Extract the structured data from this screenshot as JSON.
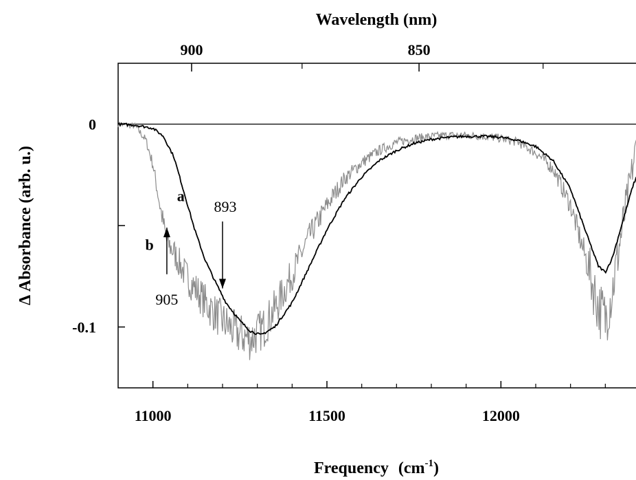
{
  "chart_data": {
    "type": "line",
    "xlabel": "Frequency",
    "xunit_base": "(cm",
    "xunit_sup": "-1",
    "xunit_close": ")",
    "top_axis_label": "Wavelength  (nm)",
    "ylabel": "Δ Absorbance (arb. u.)",
    "xlim": [
      10900,
      12400
    ],
    "ylim": [
      -0.13,
      0.03
    ],
    "x_ticks": [
      {
        "value": 11000,
        "label": "11000"
      },
      {
        "value": 11500,
        "label": "11500"
      },
      {
        "value": 12000,
        "label": "12000"
      }
    ],
    "top_ticks": [
      {
        "value": 900,
        "label": "900"
      },
      {
        "value": 850,
        "label": "850"
      }
    ],
    "y_ticks": [
      {
        "value": 0,
        "label": "0"
      },
      {
        "value": -0.1,
        "label": "-0.1"
      }
    ],
    "baseline": 0,
    "series": [
      {
        "name": "a",
        "color": "#000000",
        "noisy": false,
        "x": [
          10900,
          10950,
          11000,
          11030,
          11060,
          11090,
          11120,
          11150,
          11180,
          11210,
          11250,
          11280,
          11310,
          11350,
          11400,
          11450,
          11500,
          11550,
          11600,
          11650,
          11700,
          11750,
          11800,
          11850,
          11900,
          11950,
          12000,
          12050,
          12100,
          12150,
          12200,
          12250,
          12280,
          12300,
          12320,
          12340,
          12360,
          12380,
          12400
        ],
        "y": [
          0.0,
          -0.0005,
          -0.002,
          -0.006,
          -0.016,
          -0.034,
          -0.052,
          -0.067,
          -0.078,
          -0.088,
          -0.097,
          -0.102,
          -0.104,
          -0.1,
          -0.088,
          -0.07,
          -0.052,
          -0.037,
          -0.026,
          -0.018,
          -0.013,
          -0.0095,
          -0.0075,
          -0.0065,
          -0.006,
          -0.006,
          -0.0065,
          -0.008,
          -0.011,
          -0.018,
          -0.032,
          -0.056,
          -0.07,
          -0.073,
          -0.066,
          -0.054,
          -0.042,
          -0.03,
          -0.022
        ]
      },
      {
        "name": "b",
        "color": "#8c8c8c",
        "noisy": true,
        "x": [
          10900,
          10950,
          10980,
          11000,
          11020,
          11040,
          11060,
          11080,
          11100,
          11130,
          11160,
          11200,
          11240,
          11280,
          11320,
          11360,
          11400,
          11450,
          11500,
          11550,
          11600,
          11650,
          11700,
          11750,
          11800,
          11850,
          11900,
          11950,
          12000,
          12050,
          12100,
          12150,
          12200,
          12250,
          12280,
          12300,
          12320,
          12340,
          12360,
          12380,
          12400
        ],
        "y": [
          0.0,
          -0.001,
          -0.008,
          -0.02,
          -0.04,
          -0.058,
          -0.063,
          -0.07,
          -0.076,
          -0.083,
          -0.09,
          -0.097,
          -0.103,
          -0.106,
          -0.1,
          -0.088,
          -0.074,
          -0.055,
          -0.04,
          -0.027,
          -0.019,
          -0.013,
          -0.009,
          -0.007,
          -0.006,
          -0.0055,
          -0.0055,
          -0.006,
          -0.007,
          -0.009,
          -0.014,
          -0.022,
          -0.04,
          -0.07,
          -0.09,
          -0.096,
          -0.082,
          -0.06,
          -0.04,
          -0.02,
          0.002
        ]
      }
    ],
    "annotations": [
      {
        "text": "905",
        "x": 11040,
        "arrow_from_y": -0.074,
        "arrow_to_y": -0.051,
        "direction": "up"
      },
      {
        "text": "893",
        "x": 11200,
        "arrow_from_y": -0.048,
        "arrow_to_y": -0.081,
        "direction": "down"
      }
    ]
  }
}
